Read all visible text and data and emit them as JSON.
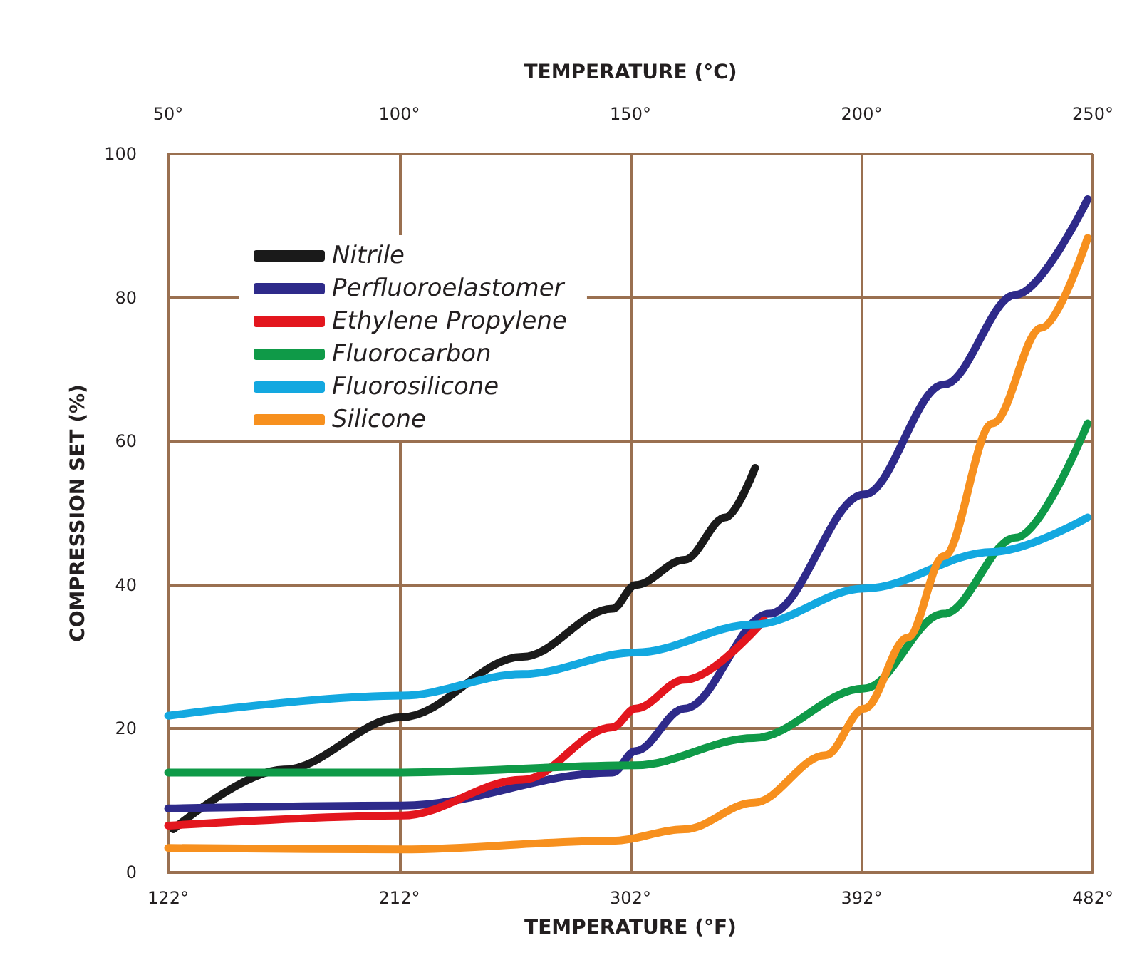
{
  "chart_data": {
    "type": "line",
    "xlabel": "TEMPERATURE (°F)",
    "x2label": "TEMPERATURE (°C)",
    "ylabel": "COMPRESSION SET (%)",
    "xlim": [
      122,
      482
    ],
    "xticks": [
      {
        "value": 122,
        "label": "122°"
      },
      {
        "value": 212,
        "label": "212°"
      },
      {
        "value": 302,
        "label": "302°"
      },
      {
        "value": 392,
        "label": "392°"
      },
      {
        "value": 482,
        "label": "482°"
      }
    ],
    "x2lim": [
      50,
      250
    ],
    "x2ticks": [
      {
        "value": 50,
        "label": "50°"
      },
      {
        "value": 100,
        "label": "100°"
      },
      {
        "value": 150,
        "label": "150°"
      },
      {
        "value": 200,
        "label": "200°"
      },
      {
        "value": 250,
        "label": "250°"
      }
    ],
    "ylim": [
      0,
      100
    ],
    "yticks": [
      0,
      20,
      40,
      60,
      80,
      100
    ],
    "grid": true,
    "legend": "top left",
    "series": [
      {
        "name": "Nitrile",
        "color": "#1a1a1a",
        "x": [
          124,
          167,
          213,
          260,
          295,
          304,
          323,
          339,
          350.5
        ],
        "values": [
          6,
          14.3,
          21.6,
          30,
          36.7,
          40,
          43.5,
          49.4,
          56.3
        ]
      },
      {
        "name": "Perfluoroelastomer",
        "color": "#2e2a8a",
        "x": [
          122,
          213,
          295,
          304,
          323,
          356,
          393,
          424,
          452,
          480
        ],
        "values": [
          8.9,
          9.3,
          13.9,
          16.9,
          22.8,
          36,
          52.6,
          67.9,
          80.4,
          93.7
        ]
      },
      {
        "name": "Ethylene Propylene",
        "color": "#e3161e",
        "x": [
          122,
          213,
          260,
          295,
          304,
          323,
          354
        ],
        "values": [
          6.5,
          7.9,
          12.9,
          20.2,
          22.8,
          26.8,
          35.1
        ]
      },
      {
        "name": "Fluorocarbon",
        "color": "#0f9a48",
        "x": [
          122,
          213,
          304,
          350,
          393,
          424,
          452,
          480
        ],
        "values": [
          13.9,
          13.9,
          14.9,
          18.7,
          25.6,
          36,
          46.6,
          62.5
        ]
      },
      {
        "name": "Fluorosilicone",
        "color": "#13a8e0",
        "x": [
          122,
          213,
          260,
          304,
          350,
          393,
          443,
          480
        ],
        "values": [
          21.8,
          24.6,
          27.6,
          30.6,
          34.5,
          39.5,
          44.6,
          49.4
        ]
      },
      {
        "name": "Silicone",
        "color": "#f7901e",
        "x": [
          122,
          213,
          295,
          323,
          350,
          378,
          393,
          410,
          424,
          443,
          462,
          480
        ],
        "values": [
          3.4,
          3.2,
          4.4,
          6,
          9.7,
          16.3,
          22.8,
          32.7,
          44,
          62.5,
          75.8,
          88.3
        ]
      }
    ]
  }
}
